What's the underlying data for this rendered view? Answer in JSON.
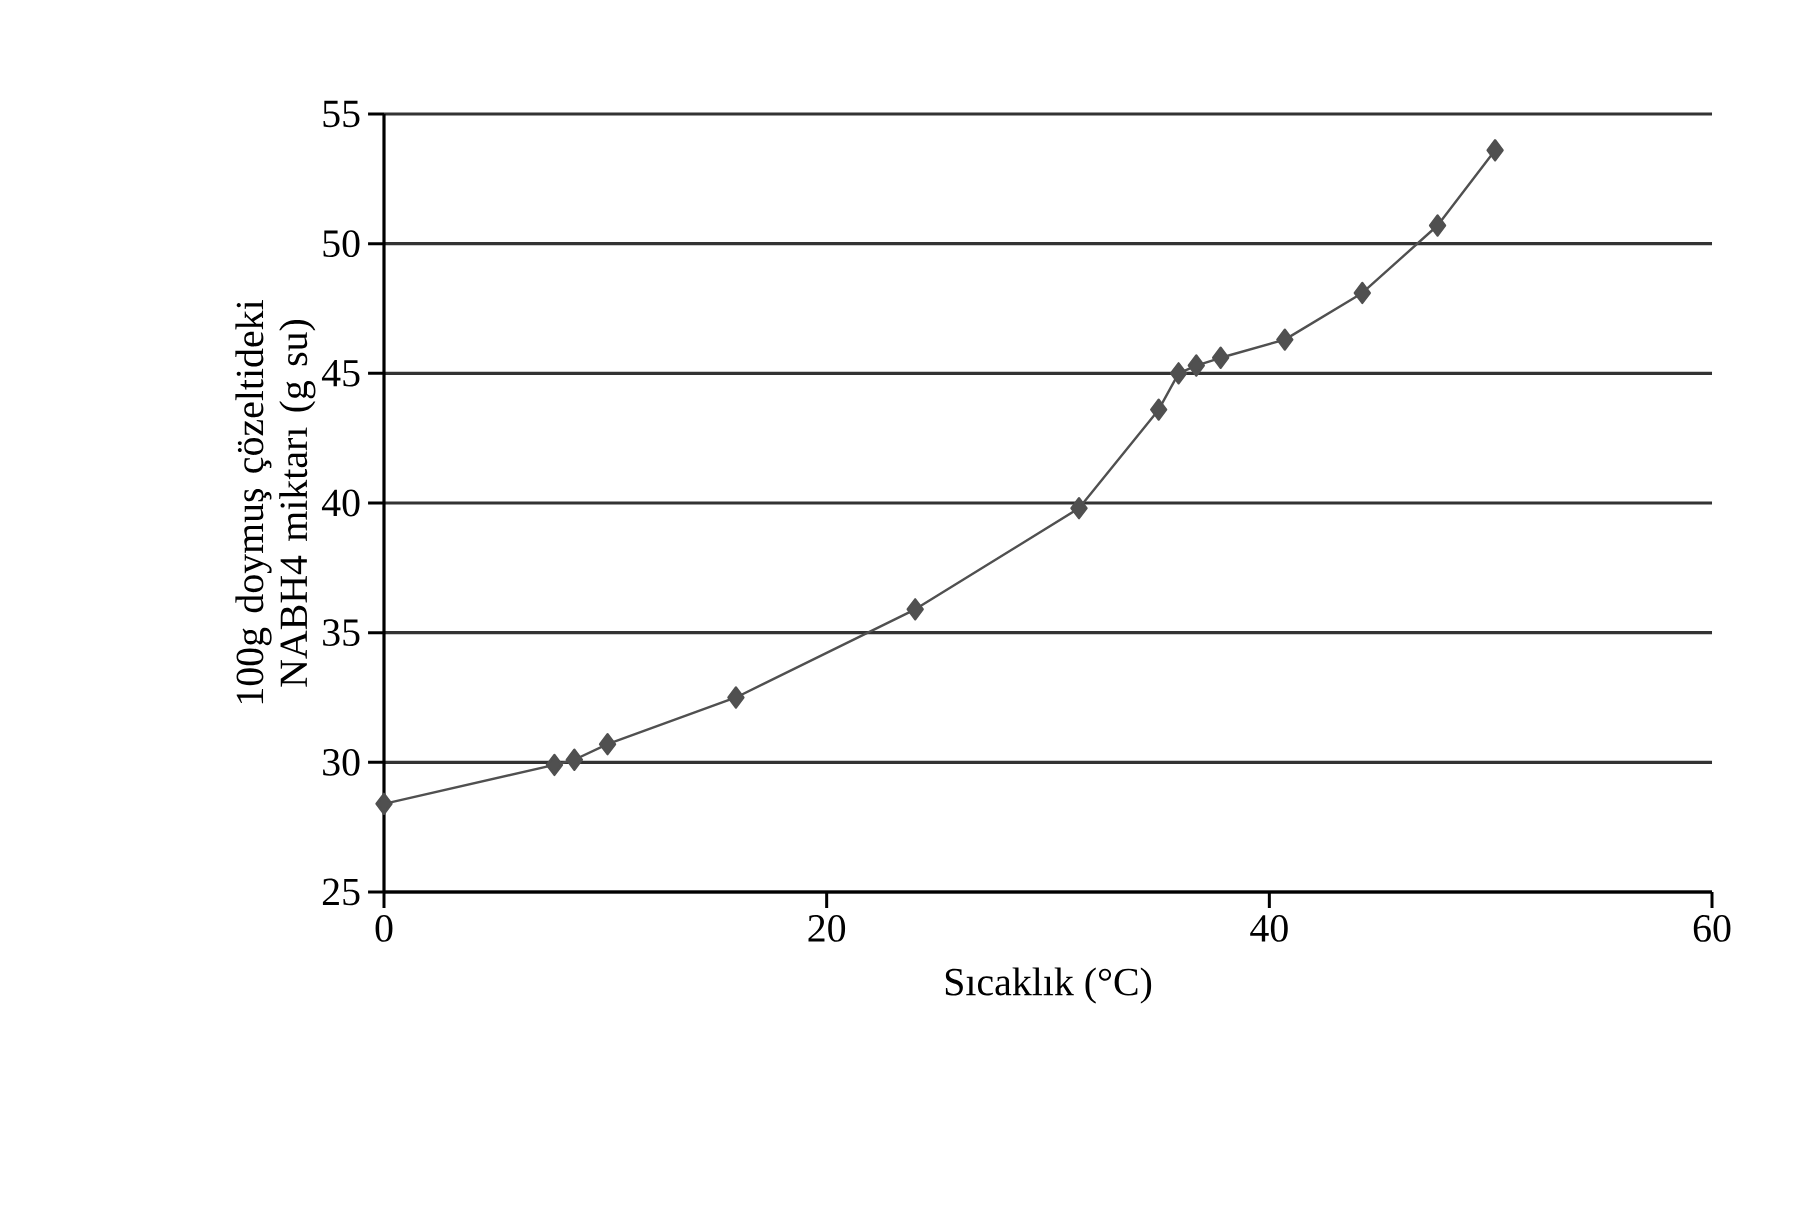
{
  "chart_data": {
    "type": "line",
    "xlabel": "Sıcaklık (°C)",
    "ylabel": "100g doymuş çözeltideki NABH4 miktarı (g su)",
    "x": [
      0,
      7.7,
      8.6,
      10.1,
      15.9,
      24.0,
      31.4,
      35.0,
      35.9,
      36.7,
      37.8,
      40.7,
      44.2,
      47.6,
      50.2
    ],
    "series": [
      {
        "color": "#505050",
        "values": [
          28.4,
          29.9,
          30.1,
          30.7,
          32.5,
          35.9,
          39.8,
          43.6,
          45.0,
          45.3,
          45.6,
          46.3,
          48.1,
          50.7,
          53.6
        ]
      }
    ],
    "xlim": [
      0,
      60
    ],
    "ylim": [
      25,
      55
    ],
    "xticks": [
      0,
      20,
      40,
      60
    ],
    "yticks": [
      25,
      30,
      35,
      40,
      45,
      50,
      55
    ],
    "grid": "y",
    "marker": "diamond",
    "line_style": "solid"
  }
}
